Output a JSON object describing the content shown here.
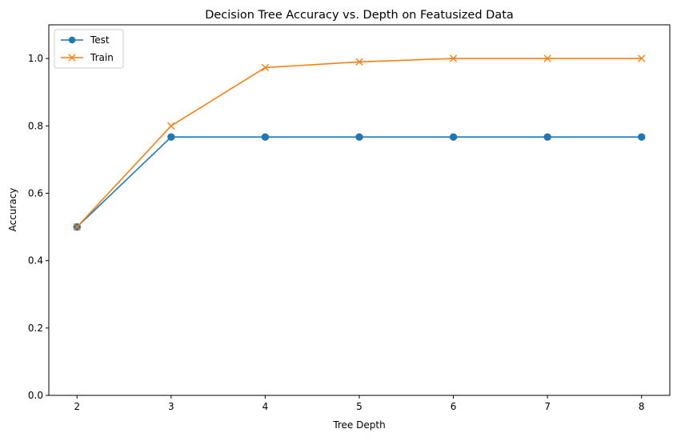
{
  "chart_data": {
    "type": "line",
    "title": "Decision Tree Accuracy vs. Depth on Featusized Data",
    "xlabel": "Tree Depth",
    "ylabel": "Accuracy",
    "x": [
      2,
      3,
      4,
      5,
      6,
      7,
      8
    ],
    "xlim": [
      1.7,
      8.3
    ],
    "ylim": [
      0.0,
      1.1
    ],
    "xticks": [
      "2",
      "3",
      "4",
      "5",
      "6",
      "7",
      "8"
    ],
    "yticks": [
      "0.0",
      "0.2",
      "0.4",
      "0.6",
      "0.8",
      "1.0"
    ],
    "grid": false,
    "legend_position": "top-left",
    "series": [
      {
        "name": "Test",
        "marker": "circle",
        "color": "#1f77b4",
        "values": [
          0.5,
          0.767,
          0.767,
          0.767,
          0.767,
          0.767,
          0.767
        ]
      },
      {
        "name": "Train",
        "marker": "x",
        "color": "#ff7f0e",
        "values": [
          0.5,
          0.8,
          0.973,
          0.99,
          1.0,
          1.0,
          1.0
        ]
      }
    ]
  }
}
